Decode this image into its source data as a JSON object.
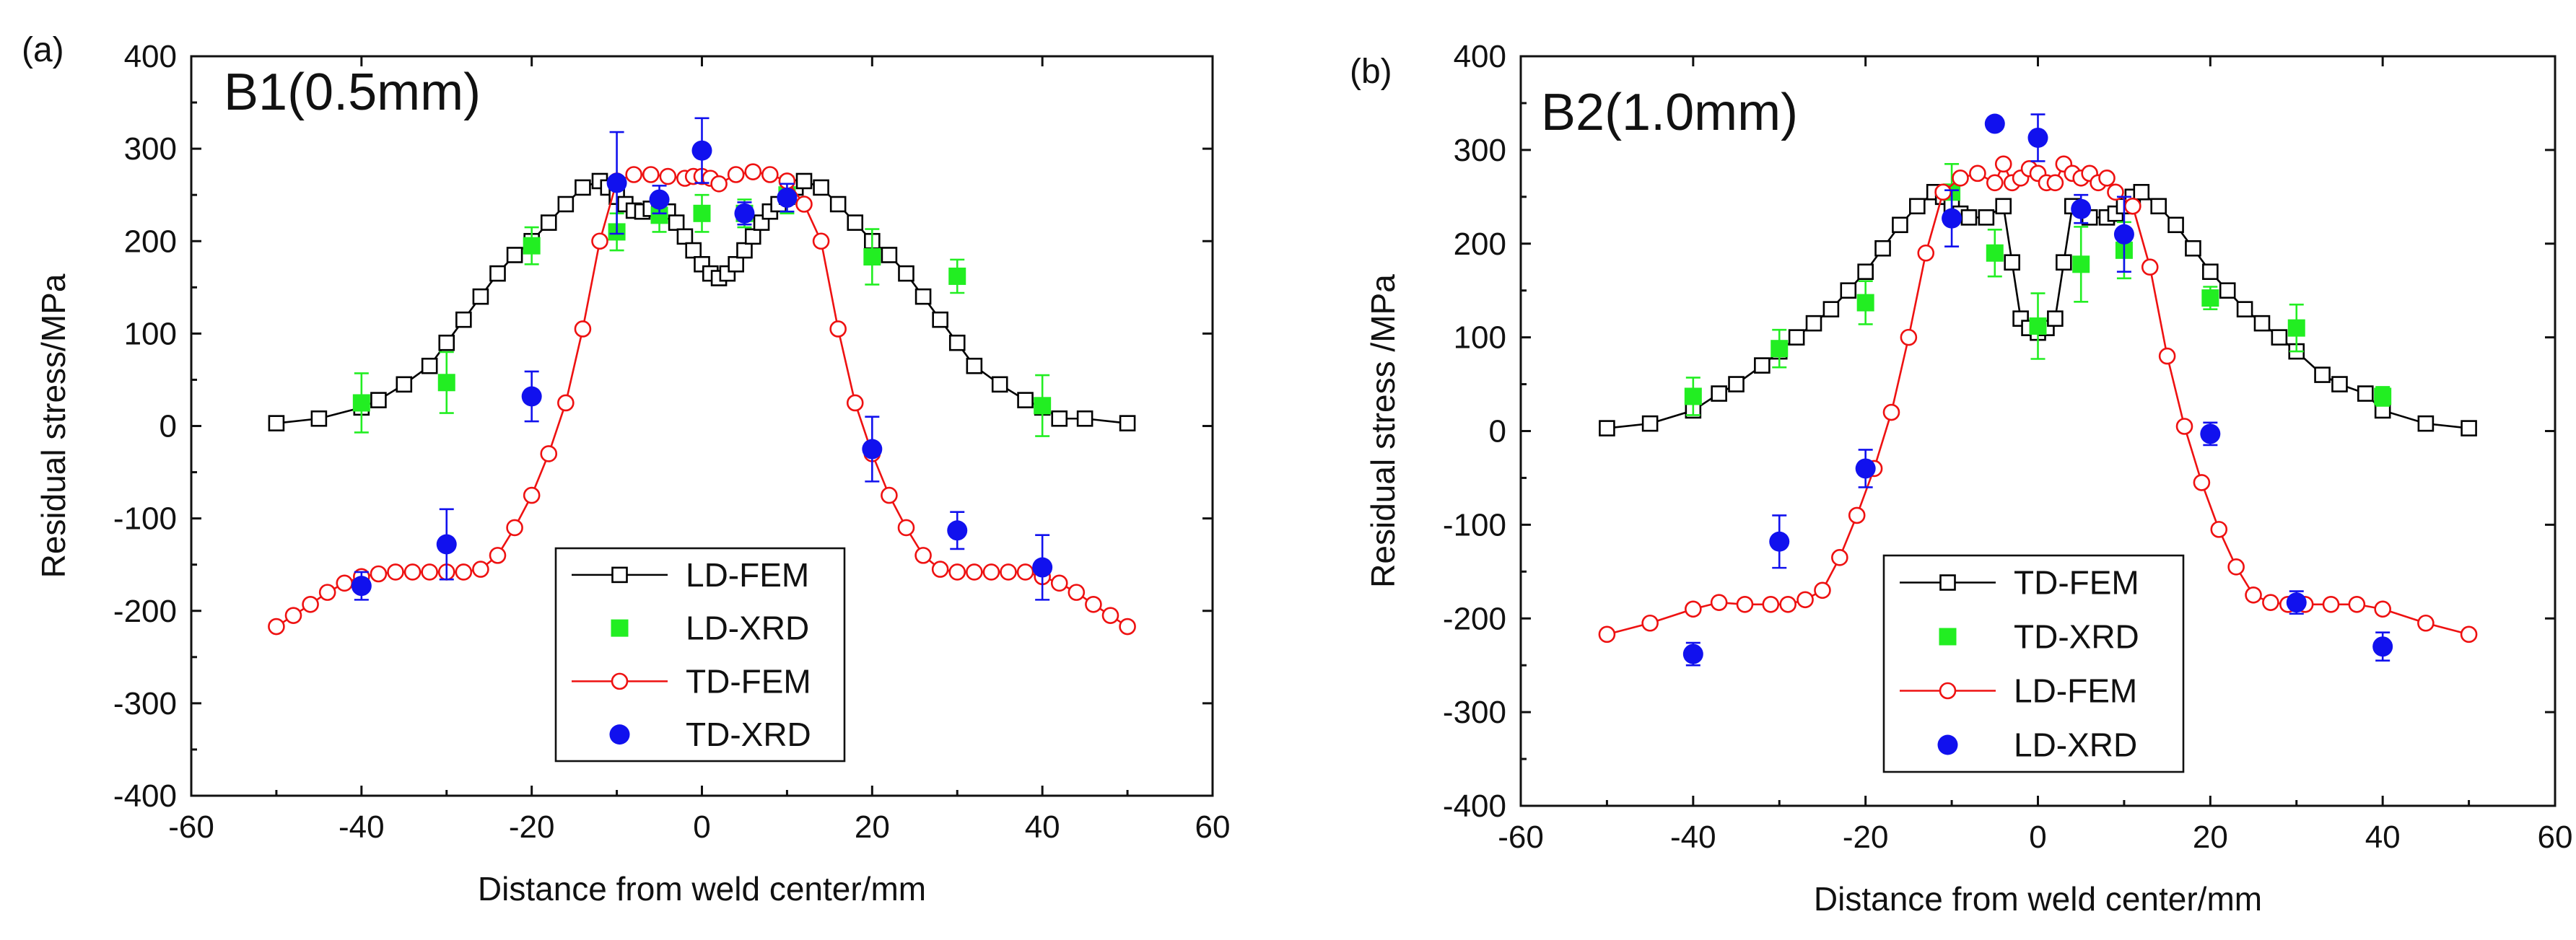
{
  "chart_data": [
    {
      "type": "line",
      "panel_label": "(a)",
      "title": "B1(0.5mm)",
      "xlabel": "Distance from weld center/mm",
      "ylabel": "Residual stress/MPa",
      "xlim": [
        -60,
        60
      ],
      "ylim": [
        -400,
        400
      ],
      "xticks": [
        -60,
        -40,
        -20,
        0,
        20,
        40,
        60
      ],
      "yticks": [
        400,
        300,
        200,
        100,
        0,
        -100,
        -200,
        -300,
        -400
      ],
      "x_tick_labels": [
        "-60",
        "-40",
        "-20",
        "0",
        "20",
        "40",
        "60"
      ],
      "y_tick_labels": [
        "400",
        "300",
        "200",
        "100",
        "0",
        "-100",
        "-200",
        "-300",
        "-400"
      ],
      "legend_position": "bottom-center",
      "series": [
        {
          "name": "LD-FEM",
          "kind": "line-marker",
          "marker": "open-square",
          "color": "#000000",
          "x": [
            -50,
            -45,
            -40,
            -38,
            -35,
            -32,
            -30,
            -28,
            -26,
            -24,
            -22,
            -20,
            -18,
            -16,
            -14,
            -12,
            -11,
            -10,
            -9,
            -8,
            -7,
            -6,
            -5,
            -4,
            -3,
            -2,
            -1,
            0,
            1,
            2,
            3,
            4,
            5,
            6,
            7,
            8,
            9,
            10,
            11,
            12,
            14,
            16,
            18,
            20,
            22,
            24,
            26,
            28,
            30,
            32,
            35,
            38,
            40,
            42,
            45,
            50
          ],
          "y": [
            3,
            8,
            20,
            28,
            45,
            65,
            90,
            115,
            140,
            165,
            185,
            200,
            220,
            240,
            258,
            265,
            258,
            248,
            240,
            233,
            232,
            235,
            238,
            232,
            220,
            205,
            190,
            175,
            165,
            160,
            165,
            175,
            190,
            205,
            220,
            232,
            240,
            248,
            258,
            265,
            258,
            240,
            220,
            200,
            185,
            165,
            140,
            115,
            90,
            65,
            45,
            28,
            20,
            8,
            8,
            3
          ]
        },
        {
          "name": "LD-XRD",
          "kind": "scatter",
          "marker": "filled-square",
          "color": "#22ee22",
          "x": [
            -40,
            -30,
            -20,
            -10,
            -5,
            0,
            5,
            10,
            20,
            30,
            40
          ],
          "y": [
            25,
            47,
            195,
            210,
            228,
            230,
            230,
            250,
            183,
            162,
            22
          ],
          "yerr": [
            32,
            33,
            20,
            20,
            18,
            20,
            15,
            20,
            30,
            18,
            33
          ]
        },
        {
          "name": "TD-FEM",
          "kind": "line-marker",
          "marker": "open-circle",
          "color": "#ee1111",
          "x": [
            -50,
            -48,
            -46,
            -44,
            -42,
            -40,
            -38,
            -36,
            -34,
            -32,
            -30,
            -28,
            -26,
            -24,
            -22,
            -20,
            -18,
            -16,
            -14,
            -12,
            -10,
            -8,
            -6,
            -4,
            -2,
            -1,
            0,
            1,
            2,
            4,
            6,
            8,
            10,
            12,
            14,
            16,
            18,
            20,
            22,
            24,
            26,
            28,
            30,
            32,
            34,
            36,
            38,
            40,
            42,
            44,
            46,
            48,
            50
          ],
          "y": [
            -217,
            -205,
            -193,
            -180,
            -170,
            -163,
            -160,
            -158,
            -158,
            -158,
            -158,
            -158,
            -155,
            -140,
            -110,
            -75,
            -30,
            25,
            105,
            200,
            265,
            272,
            272,
            270,
            268,
            270,
            270,
            268,
            262,
            272,
            275,
            272,
            265,
            240,
            200,
            105,
            25,
            -30,
            -75,
            -110,
            -140,
            -155,
            -158,
            -158,
            -158,
            -158,
            -158,
            -163,
            -170,
            -180,
            -193,
            -205,
            -217
          ]
        },
        {
          "name": "TD-XRD",
          "kind": "scatter",
          "marker": "filled-circle",
          "color": "#1111ee",
          "x": [
            -40,
            -30,
            -20,
            -10,
            -5,
            0,
            5,
            10,
            20,
            30,
            40
          ],
          "y": [
            -173,
            -128,
            32,
            263,
            245,
            298,
            230,
            247,
            -25,
            -113,
            -153
          ],
          "yerr": [
            15,
            38,
            27,
            55,
            15,
            35,
            12,
            15,
            35,
            20,
            35
          ]
        }
      ]
    },
    {
      "type": "line",
      "panel_label": "(b)",
      "title": "B2(1.0mm)",
      "xlabel": "Distance from weld center/mm",
      "ylabel": "Residual stress /MPa",
      "xlim": [
        -60,
        60
      ],
      "ylim": [
        -400,
        400
      ],
      "xticks": [
        -60,
        -40,
        -20,
        0,
        20,
        40,
        60
      ],
      "yticks": [
        400,
        300,
        200,
        100,
        0,
        -100,
        -200,
        -300,
        -400
      ],
      "x_tick_labels": [
        "-60",
        "-40",
        "-20",
        "0",
        "20",
        "40",
        "60"
      ],
      "y_tick_labels": [
        "400",
        "300",
        "200",
        "100",
        "0",
        "-100",
        "-200",
        "-300",
        "-400"
      ],
      "legend_position": "bottom-center",
      "series": [
        {
          "name": "TD-FEM",
          "kind": "line-marker",
          "marker": "open-square",
          "color": "#000000",
          "x": [
            -50,
            -45,
            -40,
            -37,
            -35,
            -32,
            -30,
            -28,
            -26,
            -24,
            -22,
            -20,
            -18,
            -16,
            -14,
            -12,
            -11,
            -10,
            -9,
            -8,
            -6,
            -4,
            -3,
            -2,
            -1,
            0,
            1,
            2,
            3,
            4,
            6,
            8,
            9,
            10,
            11,
            12,
            14,
            16,
            18,
            20,
            22,
            24,
            26,
            28,
            30,
            33,
            35,
            38,
            40,
            45,
            50
          ],
          "y": [
            3,
            8,
            22,
            40,
            50,
            70,
            85,
            100,
            115,
            130,
            150,
            170,
            195,
            220,
            240,
            255,
            250,
            240,
            232,
            228,
            228,
            240,
            180,
            120,
            110,
            105,
            110,
            120,
            180,
            240,
            228,
            228,
            232,
            240,
            250,
            255,
            240,
            220,
            195,
            170,
            150,
            130,
            115,
            100,
            85,
            60,
            50,
            40,
            22,
            8,
            3
          ]
        },
        {
          "name": "TD-XRD",
          "kind": "scatter",
          "marker": "filled-square",
          "color": "#22ee22",
          "x": [
            -40,
            -30,
            -20,
            -10,
            -5,
            0,
            5,
            10,
            20,
            30,
            40
          ],
          "y": [
            37,
            88,
            137,
            255,
            190,
            112,
            178,
            193,
            142,
            110,
            37
          ],
          "yerr": [
            20,
            20,
            23,
            30,
            25,
            35,
            40,
            30,
            12,
            25,
            10
          ]
        },
        {
          "name": "LD-FEM",
          "kind": "line-marker",
          "marker": "open-circle",
          "color": "#ee1111",
          "x": [
            -50,
            -45,
            -40,
            -37,
            -34,
            -31,
            -29,
            -27,
            -25,
            -23,
            -21,
            -19,
            -17,
            -15,
            -13,
            -11,
            -9,
            -7,
            -5,
            -4,
            -3,
            -2,
            -1,
            0,
            1,
            2,
            3,
            4,
            5,
            6,
            7,
            8,
            9,
            11,
            13,
            15,
            17,
            19,
            21,
            23,
            25,
            27,
            29,
            31,
            34,
            37,
            40,
            45,
            50
          ],
          "y": [
            -217,
            -205,
            -190,
            -183,
            -185,
            -185,
            -185,
            -180,
            -170,
            -135,
            -90,
            -40,
            20,
            100,
            190,
            255,
            270,
            275,
            265,
            285,
            265,
            270,
            280,
            275,
            265,
            265,
            285,
            275,
            270,
            275,
            265,
            270,
            255,
            240,
            175,
            80,
            5,
            -55,
            -105,
            -145,
            -175,
            -183,
            -185,
            -185,
            -185,
            -185,
            -190,
            -205,
            -217
          ]
        },
        {
          "name": "LD-XRD",
          "kind": "scatter",
          "marker": "filled-circle",
          "color": "#1111ee",
          "x": [
            -40,
            -30,
            -20,
            -10,
            -5,
            0,
            5,
            10,
            20,
            30,
            40
          ],
          "y": [
            -238,
            -118,
            -40,
            227,
            328,
            313,
            237,
            210,
            -3,
            -183,
            -230
          ],
          "yerr": [
            12,
            28,
            20,
            30,
            0,
            25,
            15,
            40,
            12,
            12,
            15
          ]
        }
      ]
    }
  ]
}
